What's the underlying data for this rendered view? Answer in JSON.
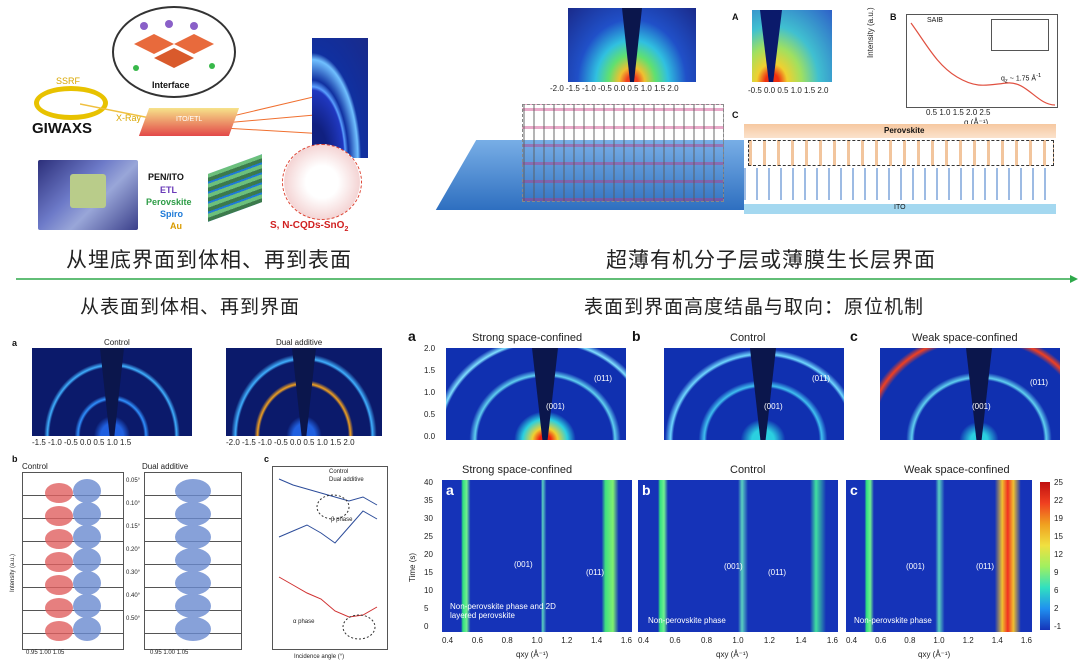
{
  "top_left": {
    "caption": "从埋底界面到体相、再到表面",
    "labels": {
      "ssrf": "SSRF",
      "giwaxs": "GIWAXS",
      "xray": "X-Ray",
      "interface": "Interface",
      "ito_et": "ITO/ETL",
      "pen_ito": "PEN/ITO",
      "etl": "ETL",
      "perovskite": "Perovskite",
      "spiro": "Spiro",
      "au": "Au",
      "cqds": "S, N-CQDs-SnO",
      "cqds_sub": "2"
    }
  },
  "top_right": {
    "caption": "超薄有机分子层或薄膜生长层界面",
    "panel_A": "A",
    "panel_B": "B",
    "panel_C": "C",
    "saib": "SAIB",
    "perovskite": "Perovskite",
    "ito": "ITO",
    "qz_value": "q",
    "qz_suffix": "~ 1.75 Å",
    "intensity_label": "Intensity (a.u.)",
    "qz_axis": "q (Å⁻¹)"
  },
  "bottom_left": {
    "caption": "从表面到体相、再到界面",
    "panel_a": "a",
    "panel_b": "b",
    "panel_c": "c",
    "control": "Control",
    "dual_additive": "Dual additive",
    "beta_phase": "β phase",
    "alpha_phase": "α phase",
    "incidence_label": "Incidence angle (°)",
    "intensity": "Intensity (a.u.)",
    "angles": [
      "0.05°",
      "0.10°",
      "0.15°",
      "0.20°",
      "0.30°",
      "0.40°",
      "0.50°"
    ],
    "legend": [
      "Control",
      "Dual additive"
    ]
  },
  "bottom_right": {
    "caption": "表面到界面高度结晶与取向：原位机制",
    "panels_top": [
      {
        "letter": "a",
        "title": "Strong space-confined",
        "peak1": "(001)",
        "peak2": "(011)"
      },
      {
        "letter": "b",
        "title": "Control",
        "peak1": "(001)",
        "peak2": "(011)"
      },
      {
        "letter": "c",
        "title": "Weak space-confined",
        "peak1": "(001)",
        "peak2": "(011)"
      }
    ],
    "panels_bottom": [
      {
        "letter": "a",
        "title": "Strong space-confined",
        "peak1": "(001)",
        "peak2": "(011)",
        "note": "Non-perovskite phase and 2D layered perovskite"
      },
      {
        "letter": "b",
        "title": "Control",
        "peak1": "(001)",
        "peak2": "(011)",
        "note": "Non-perovskite phase"
      },
      {
        "letter": "c",
        "title": "Weak space-confined",
        "peak1": "(001)",
        "peak2": "(011)",
        "note": "Non-perovskite phase"
      }
    ],
    "qz_ticks": [
      "2.0",
      "1.5",
      "1.0",
      "0.5",
      "0.0"
    ],
    "time_ticks": [
      "40",
      "35",
      "30",
      "25",
      "20",
      "15",
      "10",
      "5",
      "0"
    ],
    "qxy_ticks": [
      "0.4",
      "0.6",
      "0.8",
      "1.0",
      "1.2",
      "1.4",
      "1.6"
    ],
    "time_label": "Time (s)",
    "qxy_label": "qxy (Å⁻¹)",
    "colorbar": [
      "25",
      "22",
      "19",
      "15",
      "12",
      "9",
      "6",
      "2",
      "-1"
    ]
  }
}
